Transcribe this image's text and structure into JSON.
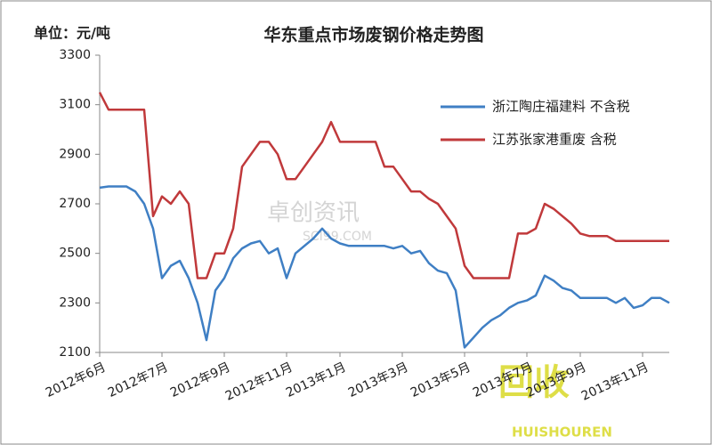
{
  "chart_data": {
    "type": "line",
    "title": "华东重点市场废钢价格走势图",
    "unit_label": "单位：元/吨",
    "categories": [
      "2012年6月",
      null,
      null,
      null,
      null,
      null,
      null,
      "2012年7月",
      null,
      null,
      null,
      null,
      null,
      null,
      "2012年9月",
      null,
      null,
      null,
      null,
      null,
      null,
      "2012年11月",
      null,
      null,
      null,
      null,
      null,
      "2013年1月",
      null,
      null,
      null,
      null,
      null,
      null,
      "2013年3月",
      null,
      null,
      null,
      null,
      null,
      null,
      "2013年5月",
      null,
      null,
      null,
      null,
      null,
      null,
      "2013年7月",
      null,
      null,
      null,
      null,
      null,
      "2013年9月",
      null,
      null,
      null,
      null,
      null,
      null,
      "2013年11月",
      null,
      null,
      null
    ],
    "series": [
      {
        "name": "浙江陶庄福建料  不含税",
        "color": "#3f7fc4",
        "values": [
          2765,
          2770,
          2770,
          2770,
          2750,
          2700,
          2600,
          2400,
          2450,
          2470,
          2400,
          2300,
          2150,
          2350,
          2400,
          2480,
          2520,
          2540,
          2550,
          2500,
          2520,
          2400,
          2500,
          2530,
          2560,
          2600,
          2560,
          2540,
          2530,
          2530,
          2530,
          2530,
          2530,
          2520,
          2530,
          2500,
          2510,
          2460,
          2430,
          2420,
          2350,
          2120,
          2160,
          2200,
          2230,
          2250,
          2280,
          2300,
          2310,
          2330,
          2410,
          2390,
          2360,
          2350,
          2320,
          2320,
          2320,
          2320,
          2300,
          2320,
          2280,
          2290,
          2320,
          2320,
          2300
        ]
      },
      {
        "name": "江苏张家港重废  含税",
        "color": "#c0393b",
        "values": [
          3150,
          3080,
          3080,
          3080,
          3080,
          3080,
          2650,
          2730,
          2700,
          2750,
          2700,
          2400,
          2400,
          2500,
          2500,
          2600,
          2850,
          2900,
          2950,
          2950,
          2900,
          2800,
          2800,
          2850,
          2900,
          2950,
          3030,
          2950,
          2950,
          2950,
          2950,
          2950,
          2850,
          2850,
          2800,
          2750,
          2750,
          2720,
          2700,
          2650,
          2600,
          2450,
          2400,
          2400,
          2400,
          2400,
          2400,
          2580,
          2580,
          2600,
          2700,
          2680,
          2650,
          2620,
          2580,
          2570,
          2570,
          2570,
          2550,
          2550,
          2550,
          2550,
          2550,
          2550,
          2550
        ]
      }
    ],
    "ylim": [
      2100,
      3300
    ],
    "yticks": [
      2100,
      2300,
      2500,
      2700,
      2900,
      3100,
      3300
    ],
    "grid": false
  },
  "watermarks": [
    "卓创资讯",
    "SCI99.COM",
    "回收",
    "HUISHOUREN"
  ]
}
